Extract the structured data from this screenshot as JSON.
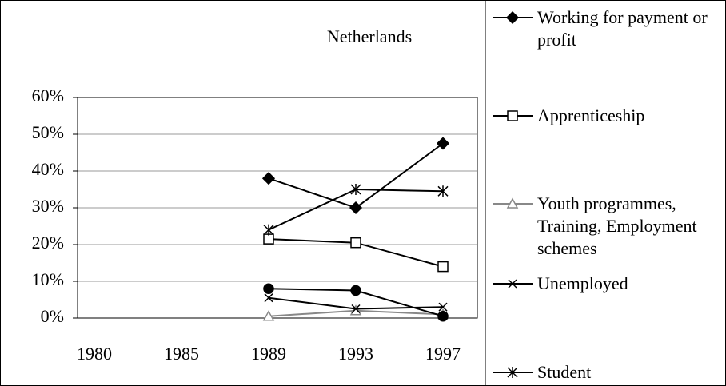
{
  "chart_data": {
    "type": "line",
    "title": "Netherlands",
    "categories": [
      "1980",
      "1985",
      "1989",
      "1993",
      "1997"
    ],
    "ylim": [
      0,
      60
    ],
    "yticks": [
      {
        "value": 0,
        "label": "0%"
      },
      {
        "value": 10,
        "label": "10%"
      },
      {
        "value": 20,
        "label": "20%"
      },
      {
        "value": 30,
        "label": "30%"
      },
      {
        "value": 40,
        "label": "40%"
      },
      {
        "value": 50,
        "label": "50%"
      },
      {
        "value": 60,
        "label": "60%"
      }
    ],
    "grid": true,
    "series": [
      {
        "name": "Working for payment or profit",
        "color": "#000000",
        "marker": "diamond",
        "values": [
          null,
          null,
          38,
          30,
          47.5
        ]
      },
      {
        "name": "Apprenticeship",
        "color": "#000000",
        "marker": "square",
        "values": [
          null,
          null,
          21.5,
          20.5,
          14
        ]
      },
      {
        "name": "Youth programmes, Training, Employment schemes",
        "color": "#888888",
        "marker": "triangle",
        "values": [
          null,
          null,
          0.5,
          2,
          1
        ]
      },
      {
        "name": "Unemployed",
        "color": "#000000",
        "marker": "x",
        "values": [
          null,
          null,
          5.5,
          2.5,
          3
        ]
      },
      {
        "name": "Student",
        "color": "#000000",
        "marker": "star",
        "values": [
          null,
          null,
          24,
          35,
          34.5
        ]
      },
      {
        "color": "#000000",
        "marker": "circle",
        "values": [
          null,
          null,
          8,
          7.5,
          0.5
        ]
      }
    ]
  }
}
